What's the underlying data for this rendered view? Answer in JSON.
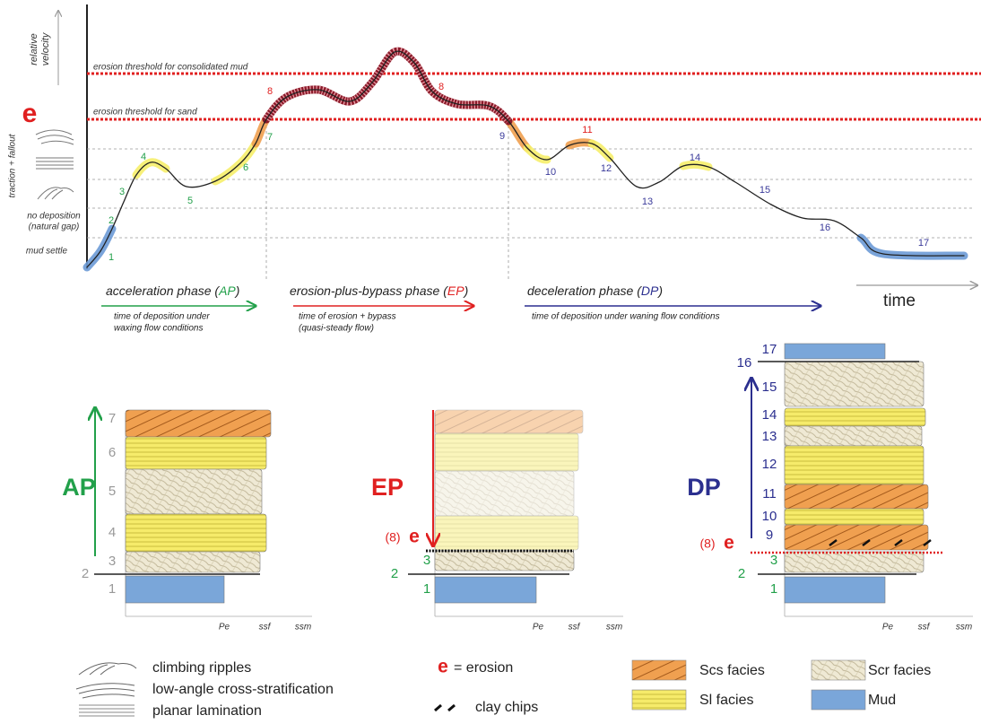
{
  "graph": {
    "y_axis": [
      "relative",
      "velocity"
    ],
    "erosion_marker": "e",
    "traction_label": "traction + fallout",
    "no_deposition": [
      "no deposition",
      "(natural gap)"
    ],
    "mud_settle": "mud settle",
    "thresholds": [
      "erosion threshold for consolidated mud",
      "erosion threshold for sand"
    ],
    "curve_labels": [
      "1",
      "2",
      "3",
      "4",
      "5",
      "6",
      "7",
      "8",
      "8",
      "9",
      "10",
      "11",
      "12",
      "13",
      "14",
      "15",
      "16",
      "17"
    ],
    "time": "time",
    "phases": [
      {
        "title": "acceleration phase (",
        "abbr": "AP",
        "close": ")",
        "note": [
          "time of deposition under",
          "waxing flow conditions"
        ]
      },
      {
        "title": "erosion-plus-bypass phase (",
        "abbr": "EP",
        "close": ")",
        "note": [
          "time of erosion + bypass",
          "(quasi-steady flow)"
        ]
      },
      {
        "title": "deceleration phase (",
        "abbr": "DP",
        "close": ")",
        "note": [
          "time of deposition under waning flow conditions"
        ]
      }
    ]
  },
  "columns": [
    {
      "label": "AP",
      "layers": [
        "7",
        "6",
        "5",
        "4",
        "3",
        "2",
        "1"
      ],
      "scale": [
        "Pe",
        "ssf",
        "ssm"
      ]
    },
    {
      "label": "EP",
      "erosion": [
        "(8)",
        "e"
      ],
      "layers": [
        "3",
        "2",
        "1"
      ],
      "scale": [
        "Pe",
        "ssf",
        "ssm"
      ]
    },
    {
      "label": "DP",
      "erosion": [
        "(8)",
        "e"
      ],
      "layers": [
        "17",
        "16",
        "15",
        "14",
        "13",
        "12",
        "11",
        "10",
        "9",
        "3",
        "2",
        "1"
      ],
      "scale": [
        "Pe",
        "ssf",
        "ssm"
      ]
    }
  ],
  "legend": {
    "symbols": [
      "climbing ripples",
      "low-angle cross-stratification",
      "planar lamination"
    ],
    "erosion": [
      "e",
      "= erosion"
    ],
    "clay_chips": "clay chips",
    "facies": [
      "Scs facies",
      "Sl facies",
      "Scr facies",
      "Mud"
    ]
  }
}
